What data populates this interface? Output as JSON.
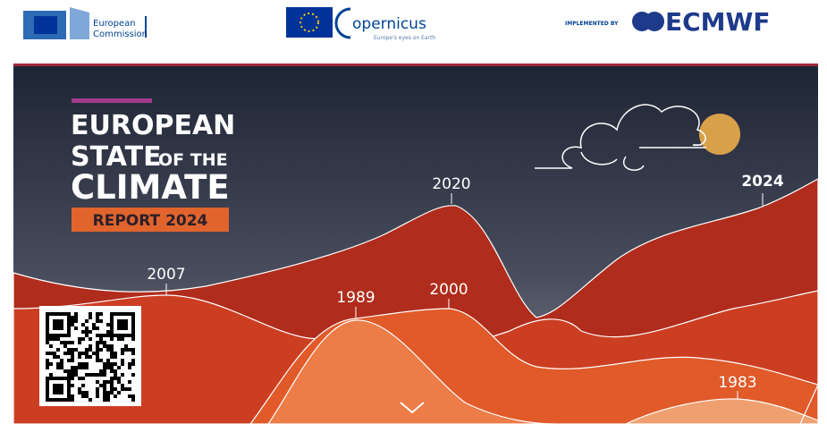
{
  "header": {
    "commission": [
      "European",
      "Commission"
    ],
    "copernicus": "opernicus",
    "copernicus_tagline": "Europe's eyes on Earth",
    "implemented_by": "IMPLEMENTED BY",
    "ecmwf": "ECMWF"
  },
  "cover": {
    "title_line1": "EUROPEAN",
    "title_line2_big": "STATE",
    "title_line2_small": "OF THE",
    "title_line3": "CLIMATE",
    "report_label": "REPORT 2024"
  },
  "years": [
    "2020",
    "2024",
    "2007",
    "1989",
    "2000",
    "1983"
  ]
}
